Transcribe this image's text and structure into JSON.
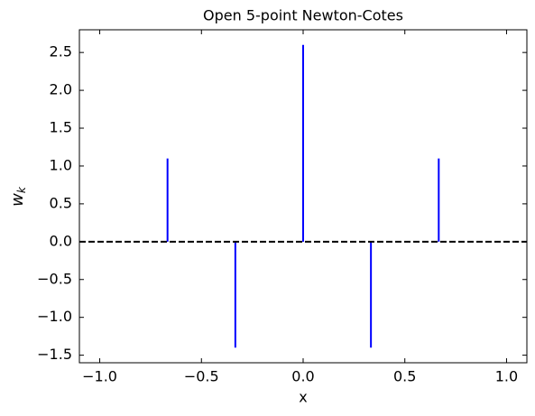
{
  "chart_data": {
    "type": "stem",
    "title": "Open 5-point Newton-Cotes",
    "xlabel": "x",
    "ylabel": {
      "base": "w",
      "sub": "k"
    },
    "x": [
      -0.6667,
      -0.3333,
      0,
      0.3333,
      0.6667
    ],
    "series": [
      {
        "color": "#0000ff",
        "values": [
          1.1,
          -1.4,
          2.6,
          -1.4,
          1.1
        ]
      }
    ],
    "hline": {
      "value": 0,
      "color": "#000000",
      "style": "dashed"
    },
    "xlim": [
      -1.1,
      1.1
    ],
    "xticks": [
      {
        "value": -1,
        "label": "−1.0"
      },
      {
        "value": -0.5,
        "label": "−0.5"
      },
      {
        "value": 0,
        "label": "0.0"
      },
      {
        "value": 0.5,
        "label": "0.5"
      },
      {
        "value": 1,
        "label": "1.0"
      }
    ],
    "ylim": [
      -1.6,
      2.8
    ],
    "yticks": [
      {
        "value": -1.5,
        "label": "−1.5"
      },
      {
        "value": -1,
        "label": "−1.0"
      },
      {
        "value": -0.5,
        "label": "−0.5"
      },
      {
        "value": 0,
        "label": "0.0"
      },
      {
        "value": 0.5,
        "label": "0.5"
      },
      {
        "value": 1,
        "label": "1.0"
      },
      {
        "value": 1.5,
        "label": "1.5"
      },
      {
        "value": 2,
        "label": "2.0"
      },
      {
        "value": 2.5,
        "label": "2.5"
      }
    ],
    "tick_direction": "in",
    "grid": false
  }
}
